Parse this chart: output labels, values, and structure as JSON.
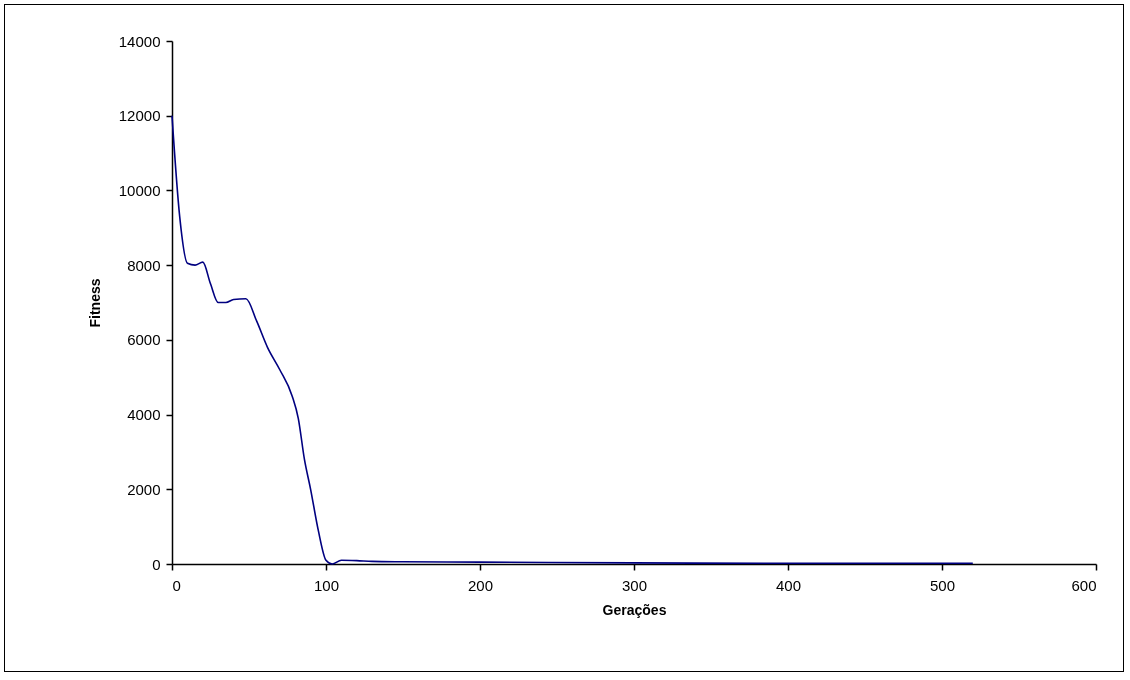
{
  "chart_data": {
    "type": "line",
    "xlabel": "Gerações",
    "ylabel": "Fitness",
    "x": [
      0,
      5,
      10,
      15,
      20,
      25,
      30,
      35,
      40,
      48,
      55,
      62,
      70,
      78,
      82,
      86,
      90,
      95,
      100,
      104,
      110,
      120,
      130,
      150,
      200,
      300,
      400,
      520
    ],
    "series": [
      {
        "color": "#000080",
        "values": [
          12000,
          9300,
          8050,
          8000,
          8080,
          7500,
          7000,
          7000,
          7080,
          7100,
          6500,
          5800,
          5200,
          4500,
          3900,
          2800,
          2000,
          900,
          100,
          0,
          100,
          90,
          70,
          60,
          50,
          30,
          20,
          20
        ]
      }
    ],
    "xlim": [
      0,
      600
    ],
    "xticks": [
      0,
      100,
      200,
      300,
      400,
      500,
      600
    ],
    "ylim": [
      0,
      14000
    ],
    "yticks": [
      0,
      2000,
      4000,
      6000,
      8000,
      10000,
      12000,
      14000
    ],
    "grid": false,
    "marker": "none",
    "line_style": "solid"
  }
}
